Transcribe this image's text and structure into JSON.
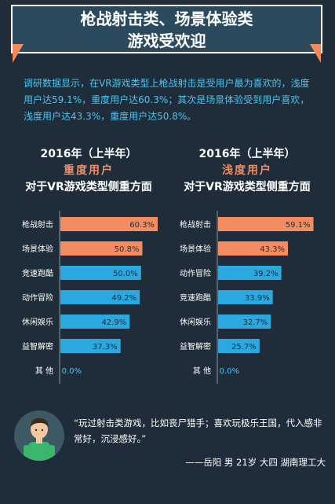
{
  "title": {
    "line1": "枪战射击类、场景体验类",
    "line2": "游戏受欢迎"
  },
  "intro": "调研数据显示，在VR游戏类型上枪战射击是受用户最为喜欢的，浅度用户达59.1%，重度用户达60.3%；其次是场景体验受到用户喜欢，浅度用户达43.3%，重度用户达50.8%。",
  "panels": {
    "left": {
      "year": "2016年（上半年）",
      "segment": "重度用户",
      "subtitle": "对于VR游戏类型侧重方面"
    },
    "right": {
      "year": "2016年（上半年）",
      "segment": "浅度用户",
      "subtitle": "对于VR游戏类型侧重方面"
    }
  },
  "colors": {
    "top": "#f58c5f",
    "other": "#2aa8e0",
    "text_cyan": "#4dc4ee",
    "accent": "#f68b5e",
    "background": "#1f2d3a"
  },
  "chart_data": [
    {
      "type": "bar",
      "orientation": "horizontal",
      "title": "2016年（上半年） 重度用户 对于VR游戏类型侧重方面",
      "categories": [
        "枪战射击",
        "场景体验",
        "竞速跑酷",
        "动作冒险",
        "休闲娱乐",
        "益智解密",
        "其 他"
      ],
      "values": [
        60.3,
        50.8,
        50.0,
        49.2,
        42.9,
        37.3,
        0.0
      ],
      "labels": [
        "60.3%",
        "50.8%",
        "50.0%",
        "49.2%",
        "42.9%",
        "37.3%",
        "0.0%"
      ],
      "highlight_count": 2
    },
    {
      "type": "bar",
      "orientation": "horizontal",
      "title": "2016年（上半年） 浅度用户 对于VR游戏类型侧重方面",
      "categories": [
        "枪战射击",
        "场景体验",
        "动作冒险",
        "竞速跑酷",
        "休闲娱乐",
        "益智解密",
        "其 他"
      ],
      "values": [
        59.1,
        43.3,
        39.2,
        33.9,
        32.7,
        25.7,
        0.0
      ],
      "labels": [
        "59.1%",
        "43.3%",
        "39.2%",
        "33.9%",
        "32.7%",
        "25.7%",
        "0.0%"
      ],
      "highlight_count": 2
    }
  ],
  "quote": {
    "text": "“玩过射击类游戏，比如丧尸猎手；喜欢玩极乐王国，代入感非常好，沉浸感好。”",
    "author": "——岳阳 男 21岁 大四 湖南理工大"
  }
}
